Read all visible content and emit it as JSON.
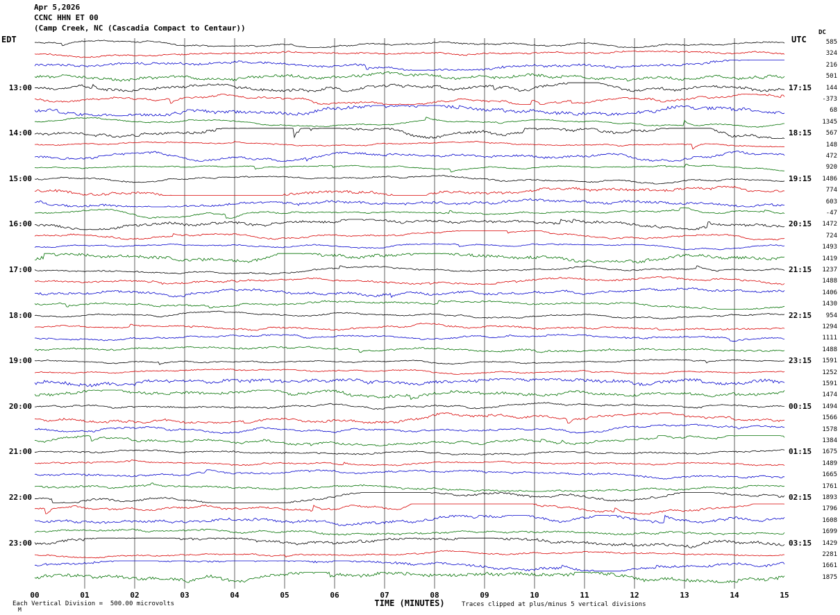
{
  "header": {
    "date": "Apr 5,2026",
    "station": "CCNC HHN ET 00",
    "location": "(Camp Creek, NC (Cascadia Compact to Centaur))"
  },
  "axes": {
    "left_tz": "EDT",
    "right_tz": "UTC",
    "dc_header": "DC",
    "x_title": "TIME (MINUTES)",
    "x_ticks": [
      "00",
      "01",
      "02",
      "03",
      "04",
      "05",
      "06",
      "07",
      "08",
      "09",
      "10",
      "11",
      "12",
      "13",
      "14",
      "15"
    ]
  },
  "footer": {
    "scale_note": "Each Vertical Division =  500.00 microvolts",
    "clip_note": "Traces clipped at plus/minus 5 vertical divisions",
    "corner_mark": "M"
  },
  "chart_data": {
    "type": "seismogram-helicorder",
    "title": "CCNC HHN ET 00 (Camp Creek, NC (Cascadia Compact to Centaur))",
    "date": "Apr 5,2026",
    "minutes_per_row": 15,
    "x_range_minutes": [
      0,
      15
    ],
    "vertical_division_microvolts": 500.0,
    "clip_divisions": 5,
    "row_colors_cycle": [
      "black",
      "red",
      "blue",
      "green"
    ],
    "colors": {
      "black": "#000000",
      "red": "#d80000",
      "blue": "#0000cc",
      "green": "#007000"
    },
    "grid_color": "#606060",
    "waveform_note": "continuous background seismic noise; individual sample values not readable from image, rendered as procedural noise",
    "traces": [
      {
        "dc": 585
      },
      {
        "dc": 324
      },
      {
        "dc": 216
      },
      {
        "dc": 501
      },
      {
        "dc": 144,
        "edt": "13:00",
        "utc": "17:15"
      },
      {
        "dc": -373
      },
      {
        "dc": 68
      },
      {
        "dc": 1345
      },
      {
        "dc": 567,
        "edt": "14:00",
        "utc": "18:15"
      },
      {
        "dc": 148
      },
      {
        "dc": 472
      },
      {
        "dc": 920
      },
      {
        "dc": 1486,
        "edt": "15:00",
        "utc": "19:15"
      },
      {
        "dc": 774
      },
      {
        "dc": 603
      },
      {
        "dc": -47
      },
      {
        "dc": 1472,
        "edt": "16:00",
        "utc": "20:15"
      },
      {
        "dc": 724
      },
      {
        "dc": 1493
      },
      {
        "dc": 1419
      },
      {
        "dc": 1237,
        "edt": "17:00",
        "utc": "21:15"
      },
      {
        "dc": 1488
      },
      {
        "dc": 1406
      },
      {
        "dc": 1430
      },
      {
        "dc": 954,
        "edt": "18:00",
        "utc": "22:15"
      },
      {
        "dc": 1294
      },
      {
        "dc": 1111
      },
      {
        "dc": 1488
      },
      {
        "dc": 1591,
        "edt": "19:00",
        "utc": "23:15"
      },
      {
        "dc": 1252
      },
      {
        "dc": 1591
      },
      {
        "dc": 1474
      },
      {
        "dc": 1494,
        "edt": "20:00",
        "utc": "00:15"
      },
      {
        "dc": 1566
      },
      {
        "dc": 1578
      },
      {
        "dc": 1384
      },
      {
        "dc": 1675,
        "edt": "21:00",
        "utc": "01:15"
      },
      {
        "dc": 1489
      },
      {
        "dc": 1665
      },
      {
        "dc": 1761
      },
      {
        "dc": 1893,
        "edt": "22:00",
        "utc": "02:15"
      },
      {
        "dc": 1796
      },
      {
        "dc": 1608
      },
      {
        "dc": 1699
      },
      {
        "dc": 1429,
        "edt": "23:00",
        "utc": "03:15"
      },
      {
        "dc": 2281
      },
      {
        "dc": 1661
      },
      {
        "dc": 1875
      }
    ]
  }
}
